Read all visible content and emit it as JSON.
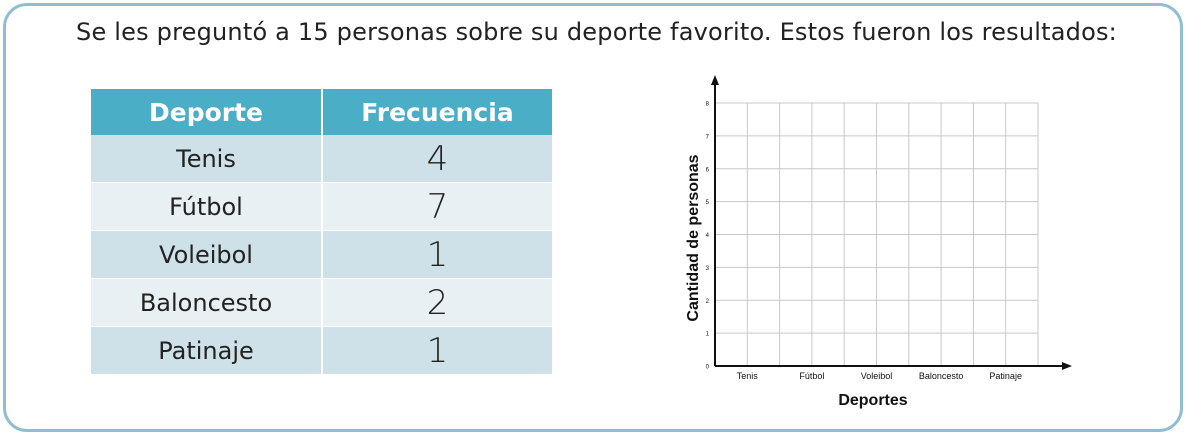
{
  "prompt": "Se les preguntó a 15 personas sobre su deporte favorito. Estos fueron los resultados:",
  "table": {
    "headers": [
      "Deporte",
      "Frecuencia"
    ],
    "rows": [
      {
        "sport": "Tenis",
        "count": "4"
      },
      {
        "sport": "Fútbol",
        "count": "7"
      },
      {
        "sport": "Voleibol",
        "count": "1"
      },
      {
        "sport": "Baloncesto",
        "count": "2"
      },
      {
        "sport": "Patinaje",
        "count": "1"
      }
    ]
  },
  "colors": {
    "header_bg": "#4aaec7",
    "row_dark": "#cfe1e8",
    "row_light": "#e8f0f3",
    "frame_border": "#8fbfcf",
    "grid": "#c8c8c8"
  },
  "chart_data": {
    "type": "bar",
    "title": "",
    "xlabel": "Deportes",
    "ylabel": "Cantidad de personas",
    "categories": [
      "Tenis",
      "Fútbol",
      "Voleibol",
      "Baloncesto",
      "Patinaje"
    ],
    "yticks": [
      0,
      1,
      2,
      3,
      4,
      5,
      6,
      7,
      8
    ],
    "ylim": [
      0,
      8
    ],
    "grid": true,
    "series": []
  }
}
